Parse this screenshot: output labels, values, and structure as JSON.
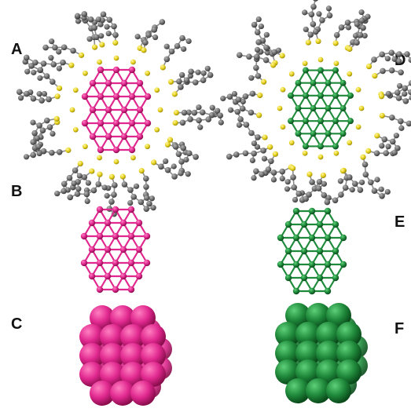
{
  "labels": {
    "A": "A",
    "B": "B",
    "C": "C",
    "D": "D",
    "E": "E",
    "F": "F"
  },
  "colors": {
    "gold_core": "#e0288f",
    "gold_core_dark": "#a8125f",
    "silver_core": "#1f8a3b",
    "silver_core_dark": "#0e5a22",
    "ligand_carbon": "#6e6e6e",
    "ligand_sulfur": "#e6d21e",
    "background": "#ffffff"
  },
  "icons": {
    "A": "ligand-protected-cluster-magenta",
    "B": "cluster-wireframe-magenta",
    "C": "cluster-spacefill-magenta",
    "D": "ligand-protected-cluster-green",
    "E": "cluster-wireframe-green",
    "F": "cluster-spacefill-green"
  }
}
